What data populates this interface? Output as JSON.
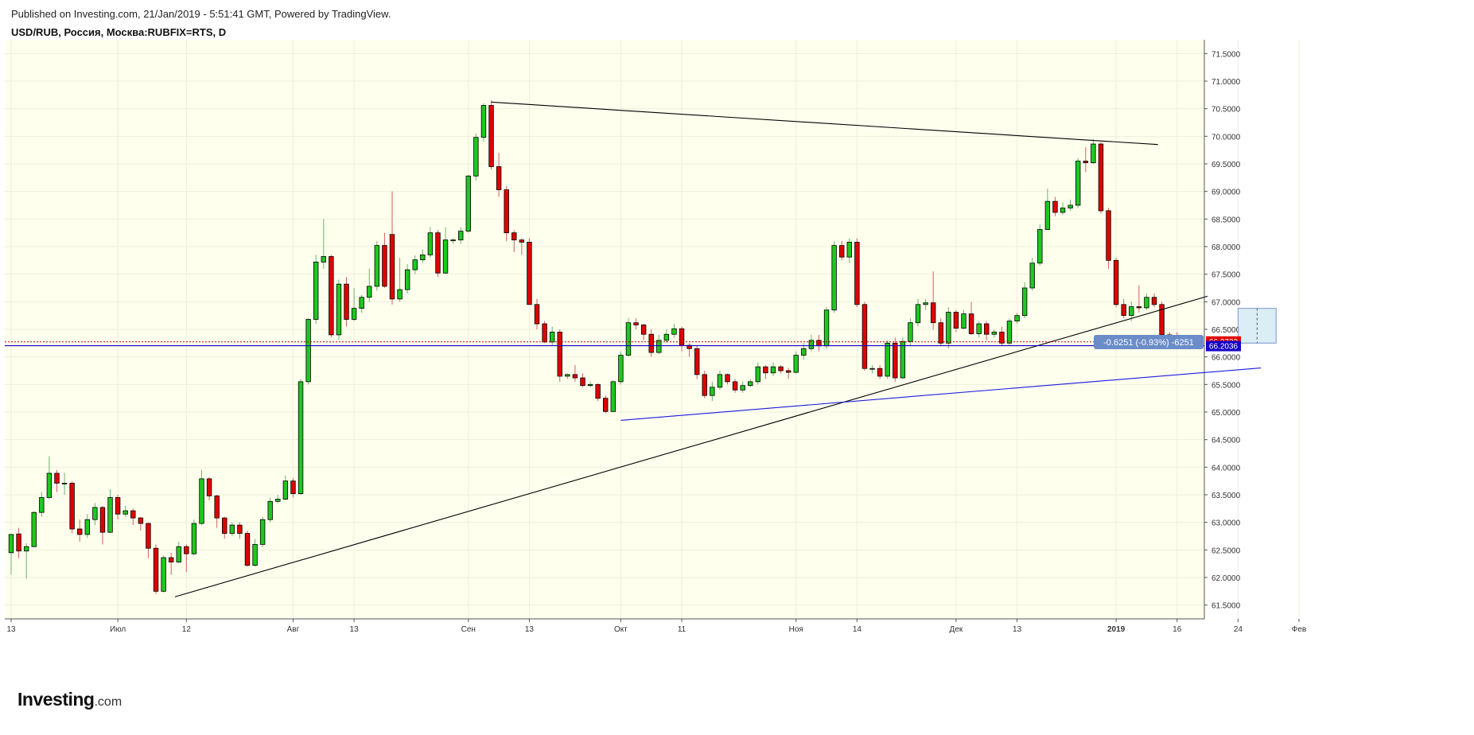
{
  "header": {
    "published": "Published on Investing.com, 21/Jan/2019 - 5:51:41 GMT, Powered by TradingView.",
    "symbol": "USD/RUB, Россия, Москва:RUBFIX=RTS, D"
  },
  "logo": {
    "brand": "Investing",
    "suffix": ".com"
  },
  "colors": {
    "background": "#ffffee",
    "up": "#1ec81e",
    "down": "#e00000",
    "trendline": "#000000",
    "support_line": "#1a1adf",
    "last_price_bg": "#e00000",
    "level_bg": "#1400c8",
    "measure_bg": "#6a8cc8"
  },
  "chart_data": {
    "type": "candlestick",
    "title": "USD/RUB, Россия, Москва:RUBFIX=RTS, D",
    "ylim": [
      61.25,
      71.75
    ],
    "y_ticks": [
      "71.5000",
      "71.0000",
      "70.5000",
      "70.0000",
      "69.5000",
      "69.0000",
      "68.5000",
      "68.0000",
      "67.5000",
      "67.0000",
      "66.5000",
      "66.0000",
      "65.5000",
      "65.0000",
      "64.5000",
      "64.0000",
      "63.5000",
      "63.0000",
      "62.5000",
      "62.0000",
      "61.5000"
    ],
    "x_ticks": [
      {
        "label": "13",
        "i": 0
      },
      {
        "label": "Июл",
        "i": 14
      },
      {
        "label": "12",
        "i": 23
      },
      {
        "label": "Авг",
        "i": 37
      },
      {
        "label": "13",
        "i": 45
      },
      {
        "label": "Сен",
        "i": 60
      },
      {
        "label": "13",
        "i": 68
      },
      {
        "label": "Окт",
        "i": 80
      },
      {
        "label": "11",
        "i": 88
      },
      {
        "label": "Ноя",
        "i": 103
      },
      {
        "label": "14",
        "i": 111
      },
      {
        "label": "Дек",
        "i": 124
      },
      {
        "label": "13",
        "i": 132
      },
      {
        "label": "2019",
        "i": 145
      },
      {
        "label": "16",
        "i": 153
      },
      {
        "label": "24",
        "i": 161
      },
      {
        "label": "Фев",
        "i": 169
      }
    ],
    "candles": [
      [
        62.45,
        62.78,
        62.05,
        62.79
      ],
      [
        62.79,
        62.48,
        62.35,
        62.9
      ],
      [
        62.48,
        62.56,
        61.98,
        62.62
      ],
      [
        62.56,
        63.18,
        62.55,
        63.2
      ],
      [
        63.18,
        63.45,
        63.1,
        63.55
      ],
      [
        63.45,
        63.89,
        63.42,
        64.2
      ],
      [
        63.89,
        63.71,
        63.55,
        63.95
      ],
      [
        63.71,
        63.71,
        63.5,
        63.9
      ],
      [
        63.71,
        62.88,
        62.8,
        63.75
      ],
      [
        62.88,
        62.78,
        62.65,
        63.05
      ],
      [
        62.78,
        63.05,
        62.72,
        63.15
      ],
      [
        63.05,
        63.27,
        62.95,
        63.35
      ],
      [
        63.27,
        62.82,
        62.6,
        63.3
      ],
      [
        62.82,
        63.45,
        62.8,
        63.6
      ],
      [
        63.45,
        63.15,
        63.05,
        63.5
      ],
      [
        63.15,
        63.21,
        63.1,
        63.3
      ],
      [
        63.21,
        63.08,
        62.95,
        63.25
      ],
      [
        63.08,
        62.98,
        62.85,
        63.1
      ],
      [
        62.98,
        62.53,
        62.35,
        63.0
      ],
      [
        62.53,
        61.75,
        61.7,
        62.6
      ],
      [
        61.75,
        62.36,
        61.73,
        62.4
      ],
      [
        62.36,
        62.28,
        62.05,
        62.45
      ],
      [
        62.28,
        62.56,
        62.25,
        62.65
      ],
      [
        62.56,
        62.43,
        62.1,
        62.6
      ],
      [
        62.43,
        62.98,
        62.4,
        63.05
      ],
      [
        62.98,
        63.79,
        62.95,
        63.95
      ],
      [
        63.79,
        63.48,
        63.4,
        63.82
      ],
      [
        63.48,
        63.08,
        62.9,
        63.5
      ],
      [
        63.08,
        62.8,
        62.7,
        63.1
      ],
      [
        62.8,
        62.95,
        62.75,
        63.0
      ],
      [
        62.95,
        62.8,
        62.7,
        63.0
      ],
      [
        62.8,
        62.22,
        62.2,
        62.85
      ],
      [
        62.22,
        62.6,
        62.2,
        62.7
      ],
      [
        62.6,
        63.05,
        62.55,
        63.1
      ],
      [
        63.05,
        63.38,
        63.0,
        63.45
      ],
      [
        63.38,
        63.42,
        63.35,
        63.5
      ],
      [
        63.42,
        63.75,
        63.4,
        63.85
      ],
      [
        63.75,
        63.52,
        63.45,
        63.8
      ],
      [
        63.52,
        65.55,
        63.5,
        65.6
      ],
      [
        65.55,
        66.68,
        65.5,
        66.7
      ],
      [
        66.68,
        67.72,
        66.6,
        67.85
      ],
      [
        67.72,
        67.82,
        67.6,
        68.5
      ],
      [
        67.82,
        66.4,
        66.35,
        67.85
      ],
      [
        66.4,
        67.32,
        66.3,
        67.4
      ],
      [
        67.32,
        66.68,
        66.55,
        67.45
      ],
      [
        66.68,
        66.88,
        66.65,
        67.25
      ],
      [
        66.88,
        67.08,
        66.8,
        67.12
      ],
      [
        67.08,
        67.28,
        67.0,
        67.6
      ],
      [
        67.28,
        68.02,
        67.2,
        68.1
      ],
      [
        68.02,
        67.28,
        67.25,
        68.25
      ],
      [
        68.22,
        67.05,
        66.95,
        69.0
      ],
      [
        67.05,
        67.22,
        67.0,
        67.8
      ],
      [
        67.22,
        67.58,
        67.15,
        67.68
      ],
      [
        67.58,
        67.76,
        67.5,
        67.84
      ],
      [
        67.76,
        67.85,
        67.7,
        67.95
      ],
      [
        67.85,
        68.25,
        67.8,
        68.35
      ],
      [
        68.25,
        67.52,
        67.45,
        68.3
      ],
      [
        67.52,
        68.12,
        67.5,
        68.35
      ],
      [
        68.12,
        68.12,
        68.05,
        68.15
      ],
      [
        68.12,
        68.28,
        68.05,
        68.35
      ],
      [
        68.28,
        69.28,
        68.25,
        69.3
      ],
      [
        69.28,
        69.98,
        69.2,
        70.05
      ],
      [
        69.98,
        70.56,
        69.9,
        70.6
      ],
      [
        70.56,
        69.45,
        69.4,
        70.65
      ],
      [
        69.45,
        69.03,
        68.9,
        69.7
      ],
      [
        69.03,
        68.25,
        68.1,
        69.1
      ],
      [
        68.25,
        68.12,
        67.9,
        68.3
      ],
      [
        68.12,
        68.08,
        67.85,
        68.15
      ],
      [
        68.08,
        66.95,
        66.95,
        68.15
      ],
      [
        66.95,
        66.6,
        66.5,
        67.05
      ],
      [
        66.6,
        66.27,
        66.25,
        66.65
      ],
      [
        66.27,
        66.45,
        66.2,
        66.55
      ],
      [
        66.45,
        65.65,
        65.55,
        66.5
      ],
      [
        65.65,
        65.68,
        65.6,
        65.7
      ],
      [
        65.68,
        65.62,
        65.55,
        65.85
      ],
      [
        65.62,
        65.48,
        65.45,
        65.7
      ],
      [
        65.48,
        65.5,
        65.45,
        65.55
      ],
      [
        65.5,
        65.25,
        65.2,
        65.52
      ],
      [
        65.25,
        65.01,
        64.98,
        65.3
      ],
      [
        65.01,
        65.55,
        65.0,
        65.58
      ],
      [
        65.55,
        66.03,
        65.5,
        66.1
      ],
      [
        66.03,
        66.62,
        66.0,
        66.7
      ],
      [
        66.62,
        66.58,
        66.5,
        66.7
      ],
      [
        66.58,
        66.41,
        66.3,
        66.6
      ],
      [
        66.41,
        66.08,
        66.0,
        66.5
      ],
      [
        66.08,
        66.3,
        66.05,
        66.4
      ],
      [
        66.3,
        66.41,
        66.25,
        66.5
      ],
      [
        66.41,
        66.51,
        66.35,
        66.6
      ],
      [
        66.51,
        66.21,
        66.1,
        66.55
      ],
      [
        66.21,
        66.15,
        66.0,
        66.25
      ],
      [
        66.15,
        65.68,
        65.6,
        66.2
      ],
      [
        65.68,
        65.3,
        65.25,
        65.75
      ],
      [
        65.3,
        65.45,
        65.2,
        65.55
      ],
      [
        65.45,
        65.68,
        65.4,
        65.75
      ],
      [
        65.68,
        65.55,
        65.5,
        65.7
      ],
      [
        65.55,
        65.4,
        65.35,
        65.6
      ],
      [
        65.4,
        65.48,
        65.35,
        65.55
      ],
      [
        65.48,
        65.55,
        65.45,
        65.6
      ],
      [
        65.55,
        65.82,
        65.5,
        65.9
      ],
      [
        65.82,
        65.71,
        65.6,
        65.85
      ],
      [
        65.71,
        65.82,
        65.65,
        65.9
      ],
      [
        65.82,
        65.75,
        65.7,
        65.85
      ],
      [
        65.75,
        65.72,
        65.6,
        65.8
      ],
      [
        65.72,
        66.03,
        65.7,
        66.1
      ],
      [
        66.03,
        66.15,
        65.95,
        66.25
      ],
      [
        66.15,
        66.3,
        66.1,
        66.4
      ],
      [
        66.3,
        66.2,
        66.1,
        66.4
      ],
      [
        66.2,
        66.85,
        66.15,
        66.9
      ],
      [
        66.85,
        68.02,
        66.8,
        68.1
      ],
      [
        68.02,
        67.81,
        67.75,
        68.1
      ],
      [
        67.81,
        68.08,
        67.7,
        68.15
      ],
      [
        68.08,
        66.95,
        66.9,
        68.15
      ],
      [
        66.95,
        65.79,
        65.75,
        67.0
      ],
      [
        65.79,
        65.79,
        65.7,
        65.85
      ],
      [
        65.79,
        65.65,
        65.6,
        65.85
      ],
      [
        65.65,
        66.25,
        65.6,
        66.3
      ],
      [
        66.25,
        65.62,
        65.55,
        66.35
      ],
      [
        65.62,
        66.28,
        65.6,
        66.35
      ],
      [
        66.28,
        66.62,
        66.2,
        66.7
      ],
      [
        66.62,
        66.95,
        66.55,
        67.05
      ],
      [
        66.95,
        66.98,
        66.85,
        67.05
      ],
      [
        66.98,
        66.62,
        66.5,
        67.55
      ],
      [
        66.62,
        66.25,
        66.2,
        66.7
      ],
      [
        66.25,
        66.81,
        66.15,
        66.9
      ],
      [
        66.81,
        66.52,
        66.45,
        66.85
      ],
      [
        66.52,
        66.78,
        66.5,
        66.85
      ],
      [
        66.78,
        66.42,
        66.4,
        67.0
      ],
      [
        66.42,
        66.6,
        66.35,
        66.65
      ],
      [
        66.6,
        66.41,
        66.3,
        66.65
      ],
      [
        66.41,
        66.45,
        66.35,
        66.5
      ],
      [
        66.45,
        66.25,
        66.2,
        66.55
      ],
      [
        66.25,
        66.65,
        66.2,
        66.7
      ],
      [
        66.65,
        66.75,
        66.6,
        66.8
      ],
      [
        66.75,
        67.25,
        66.7,
        67.35
      ],
      [
        67.25,
        67.7,
        67.2,
        67.8
      ],
      [
        67.7,
        68.31,
        67.65,
        68.4
      ],
      [
        68.31,
        68.82,
        68.3,
        69.05
      ],
      [
        68.82,
        68.62,
        68.55,
        68.9
      ],
      [
        68.62,
        68.7,
        68.58,
        68.8
      ],
      [
        68.7,
        68.75,
        68.65,
        68.85
      ],
      [
        68.75,
        69.55,
        68.7,
        69.6
      ],
      [
        69.55,
        69.52,
        69.35,
        69.8
      ],
      [
        69.52,
        69.86,
        69.5,
        69.95
      ],
      [
        69.86,
        68.65,
        68.6,
        69.9
      ],
      [
        68.65,
        67.75,
        67.6,
        68.7
      ],
      [
        67.75,
        66.95,
        66.9,
        67.8
      ],
      [
        66.95,
        66.75,
        66.7,
        67.05
      ],
      [
        66.75,
        66.91,
        66.65,
        67.0
      ],
      [
        66.91,
        66.89,
        66.8,
        67.3
      ],
      [
        66.89,
        67.08,
        66.85,
        67.15
      ],
      [
        67.08,
        66.95,
        66.9,
        67.15
      ],
      [
        66.95,
        66.4,
        66.35,
        67.0
      ],
      [
        66.4,
        66.37,
        66.3,
        66.45
      ],
      [
        66.37,
        66.27,
        66.2,
        66.45
      ]
    ],
    "trendlines": [
      {
        "name": "resistance",
        "from": [
          63.0,
          70.62
        ],
        "to": [
          150.5,
          69.85
        ]
      },
      {
        "name": "support-long",
        "from": [
          21.5,
          61.65
        ],
        "to": [
          157.0,
          67.1
        ]
      },
      {
        "name": "support-blue",
        "from": [
          80.0,
          64.85
        ],
        "to": [
          164.0,
          65.8
        ]
      }
    ],
    "last_price": "66.2722",
    "level_price": "66.2036",
    "measure_label": "-0.6251 (-0.93%) -6251",
    "measure_box": {
      "from_i": 161,
      "to_i": 166,
      "top": 66.88,
      "bottom": 66.25
    }
  }
}
